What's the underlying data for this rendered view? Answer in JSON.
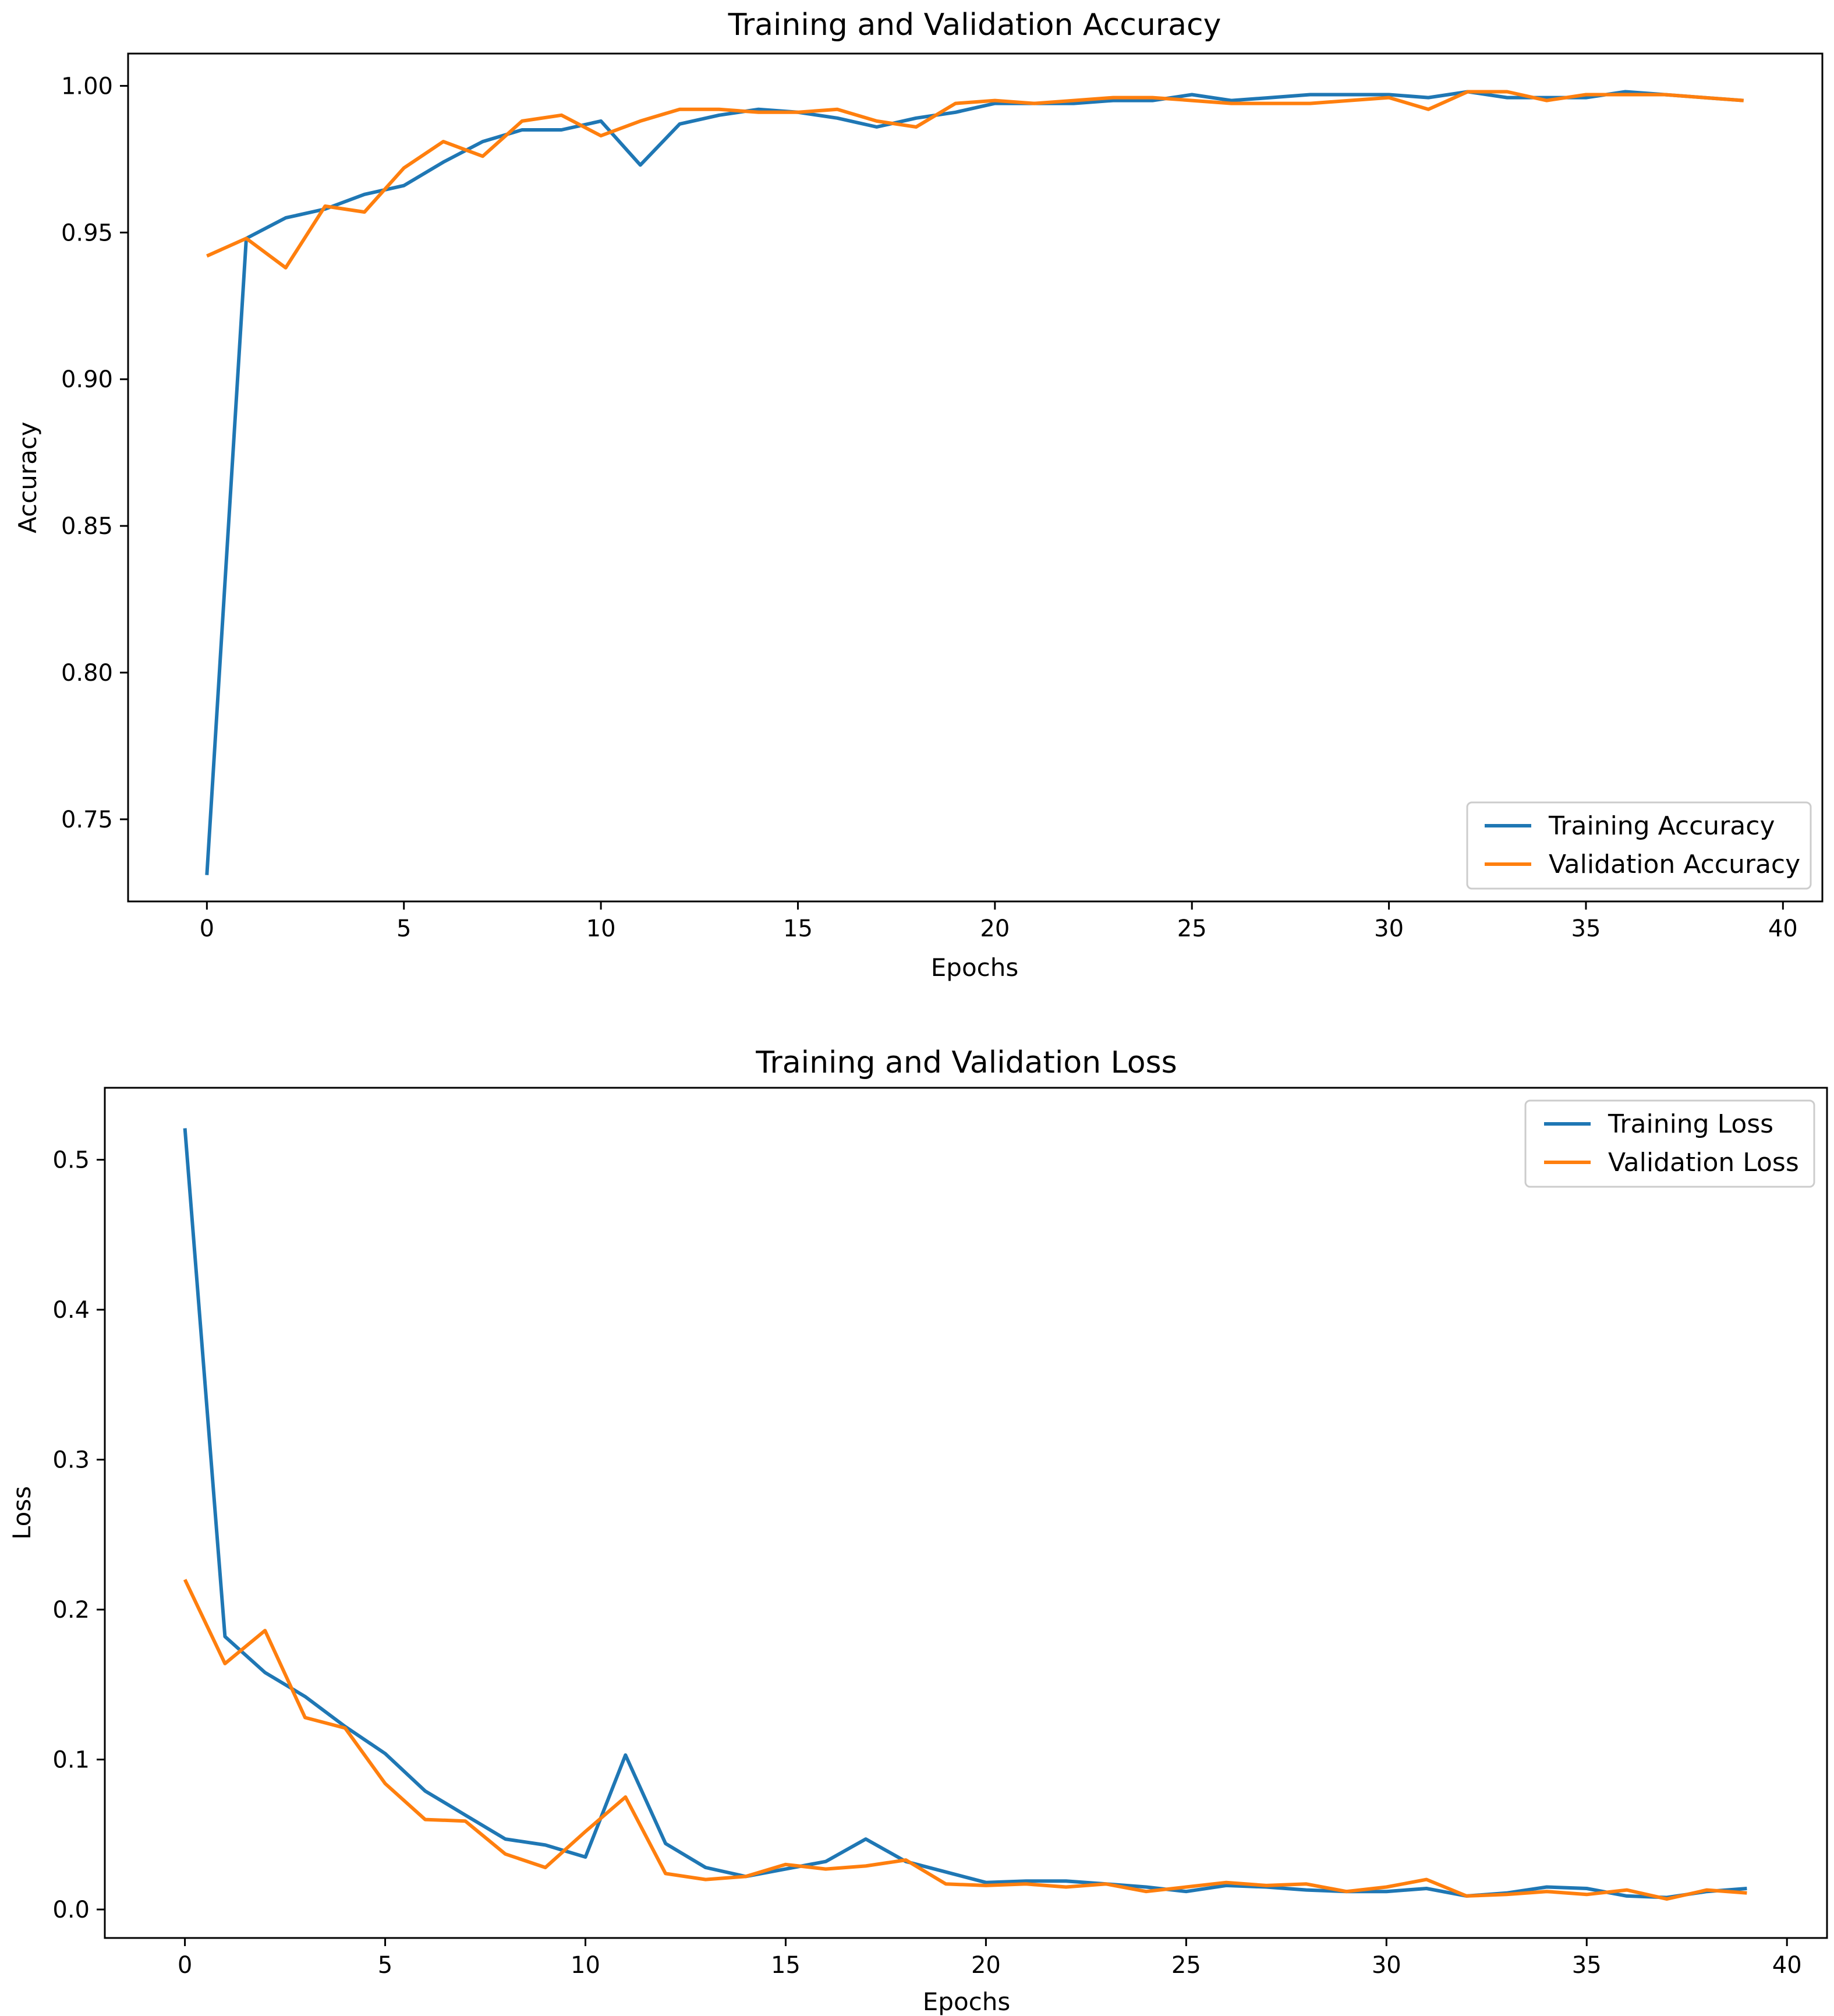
{
  "colors": {
    "training": "#1f77b4",
    "validation": "#ff7f0e"
  },
  "chart_data": [
    {
      "type": "line",
      "title": "Training and Validation Accuracy",
      "xlabel": "Epochs",
      "ylabel": "Accuracy",
      "xlim": [
        -2.0,
        41.0
      ],
      "ylim": [
        0.722,
        1.011
      ],
      "xticks": [
        0,
        5,
        10,
        15,
        20,
        25,
        30,
        35,
        40
      ],
      "yticks": [
        0.75,
        0.8,
        0.85,
        0.9,
        0.95,
        1.0
      ],
      "ytick_labels": [
        "0.75",
        "0.80",
        "0.85",
        "0.90",
        "0.95",
        "1.00"
      ],
      "legend_position": "bottom-right",
      "x": [
        0,
        1,
        2,
        3,
        4,
        5,
        6,
        7,
        8,
        9,
        10,
        11,
        12,
        13,
        14,
        15,
        16,
        17,
        18,
        19,
        20,
        21,
        22,
        23,
        24,
        25,
        26,
        27,
        28,
        29,
        30,
        31,
        32,
        33,
        34,
        35,
        36,
        37,
        38,
        39
      ],
      "series": [
        {
          "name": "Training Accuracy",
          "color_key": "training",
          "values": [
            0.731,
            0.948,
            0.955,
            0.958,
            0.963,
            0.966,
            0.974,
            0.981,
            0.985,
            0.985,
            0.988,
            0.973,
            0.987,
            0.99,
            0.992,
            0.991,
            0.989,
            0.986,
            0.989,
            0.991,
            0.994,
            0.994,
            0.994,
            0.995,
            0.995,
            0.997,
            0.995,
            0.996,
            0.997,
            0.997,
            0.997,
            0.996,
            0.998,
            0.996,
            0.996,
            0.996,
            0.998,
            0.997,
            0.996,
            0.995
          ]
        },
        {
          "name": "Validation Accuracy",
          "color_key": "validation",
          "values": [
            0.942,
            0.948,
            0.938,
            0.959,
            0.957,
            0.972,
            0.981,
            0.976,
            0.988,
            0.99,
            0.983,
            0.988,
            0.992,
            0.992,
            0.991,
            0.991,
            0.992,
            0.988,
            0.986,
            0.994,
            0.995,
            0.994,
            0.995,
            0.996,
            0.996,
            0.995,
            0.994,
            0.994,
            0.994,
            0.995,
            0.996,
            0.992,
            0.998,
            0.998,
            0.995,
            0.997,
            0.997,
            0.997,
            0.996,
            0.995
          ]
        }
      ]
    },
    {
      "type": "line",
      "title": "Training and Validation Loss",
      "xlabel": "Epochs",
      "ylabel": "Loss",
      "xlim": [
        -2.0,
        41.0
      ],
      "ylim": [
        -0.019,
        0.548
      ],
      "xticks": [
        0,
        5,
        10,
        15,
        20,
        25,
        30,
        35,
        40
      ],
      "yticks": [
        0.0,
        0.1,
        0.2,
        0.3,
        0.4,
        0.5
      ],
      "ytick_labels": [
        "0.0",
        "0.1",
        "0.2",
        "0.3",
        "0.4",
        "0.5"
      ],
      "legend_position": "top-right",
      "x": [
        0,
        1,
        2,
        3,
        4,
        5,
        6,
        7,
        8,
        9,
        10,
        11,
        12,
        13,
        14,
        15,
        16,
        17,
        18,
        19,
        20,
        21,
        22,
        23,
        24,
        25,
        26,
        27,
        28,
        29,
        30,
        31,
        32,
        33,
        34,
        35,
        36,
        37,
        38,
        39
      ],
      "series": [
        {
          "name": "Training Loss",
          "color_key": "training",
          "values": [
            0.521,
            0.182,
            0.158,
            0.142,
            0.122,
            0.104,
            0.079,
            0.063,
            0.047,
            0.043,
            0.035,
            0.103,
            0.044,
            0.028,
            0.022,
            0.027,
            0.032,
            0.047,
            0.032,
            0.025,
            0.018,
            0.019,
            0.019,
            0.017,
            0.015,
            0.012,
            0.016,
            0.015,
            0.013,
            0.012,
            0.012,
            0.014,
            0.009,
            0.011,
            0.015,
            0.014,
            0.009,
            0.008,
            0.012,
            0.014
          ]
        },
        {
          "name": "Validation Loss",
          "color_key": "validation",
          "values": [
            0.22,
            0.164,
            0.186,
            0.128,
            0.121,
            0.084,
            0.06,
            0.059,
            0.037,
            0.028,
            0.052,
            0.075,
            0.024,
            0.02,
            0.022,
            0.03,
            0.027,
            0.029,
            0.033,
            0.017,
            0.016,
            0.017,
            0.015,
            0.017,
            0.012,
            0.015,
            0.018,
            0.016,
            0.017,
            0.012,
            0.015,
            0.02,
            0.009,
            0.01,
            0.012,
            0.01,
            0.013,
            0.007,
            0.013,
            0.011
          ]
        }
      ]
    }
  ]
}
